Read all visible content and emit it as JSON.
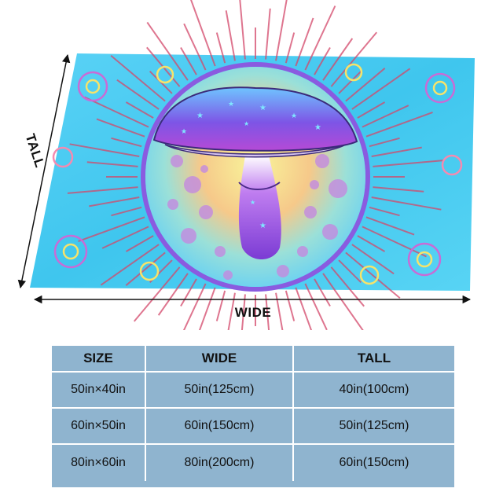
{
  "dimension_labels": {
    "tall": "TALL",
    "wide": "WIDE"
  },
  "size_table": {
    "headers": [
      "SIZE",
      "WIDE",
      "TALL"
    ],
    "rows": [
      [
        "50in×40in",
        "50in(125cm)",
        "40in(100cm)"
      ],
      [
        "60in×50in",
        "60in(150cm)",
        "50in(125cm)"
      ],
      [
        "80in×60in",
        "80in(200cm)",
        "60in(150cm)"
      ]
    ]
  },
  "colors": {
    "table_background": "#8fb4cf",
    "blanket_base": "#3fc8f0",
    "mushroom_cap": "#7a4fe0",
    "mushroom_stem": "#a64fd8"
  }
}
